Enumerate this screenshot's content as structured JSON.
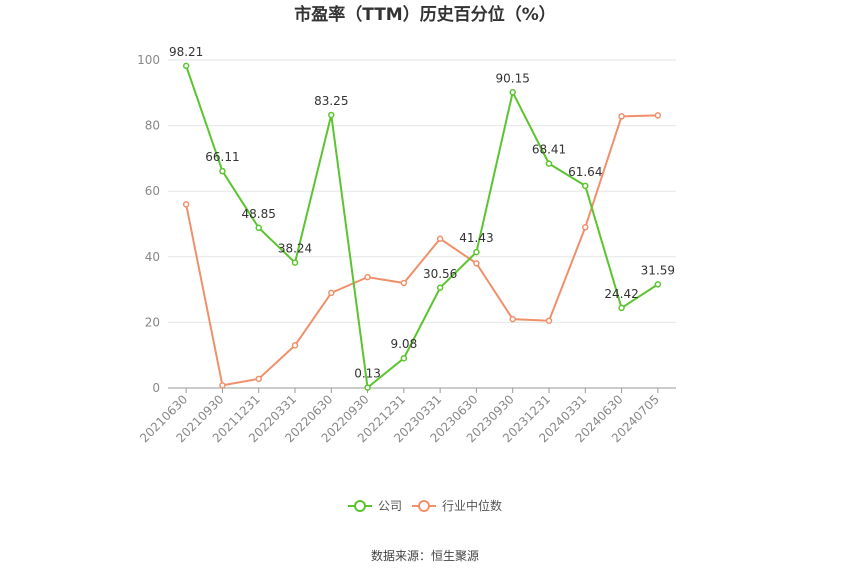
{
  "chart_data": {
    "type": "line",
    "title": "市盈率（TTM）历史百分位（%）",
    "categories": [
      "20210630",
      "20210930",
      "20211231",
      "20220331",
      "20220630",
      "20220930",
      "20221231",
      "20230331",
      "20230630",
      "20230930",
      "20231231",
      "20240331",
      "20240630",
      "20240705"
    ],
    "ylim": [
      0,
      100
    ],
    "yticks": [
      "0",
      "20",
      "40",
      "60",
      "80",
      "100"
    ],
    "grid": true,
    "legend_position": "bottom",
    "series": [
      {
        "name": "公司",
        "color": "#5bc42e",
        "values": [
          98.21,
          66.11,
          48.85,
          38.24,
          83.25,
          0.13,
          9.08,
          30.56,
          41.43,
          90.15,
          68.41,
          61.64,
          24.42,
          31.59
        ],
        "labels": [
          "98.21",
          "66.11",
          "48.85",
          "38.24",
          "83.25",
          "0.13",
          "9.08",
          "30.56",
          "41.43",
          "90.15",
          "68.41",
          "61.64",
          "24.42",
          "31.59"
        ]
      },
      {
        "name": "行业中位数",
        "color": "#f0906a",
        "values": [
          56,
          0.8,
          2.8,
          13,
          29,
          33.8,
          32,
          45.5,
          38,
          21,
          20.5,
          49,
          82.8,
          83.1
        ]
      }
    ],
    "source": "数据来源：恒生聚源"
  }
}
